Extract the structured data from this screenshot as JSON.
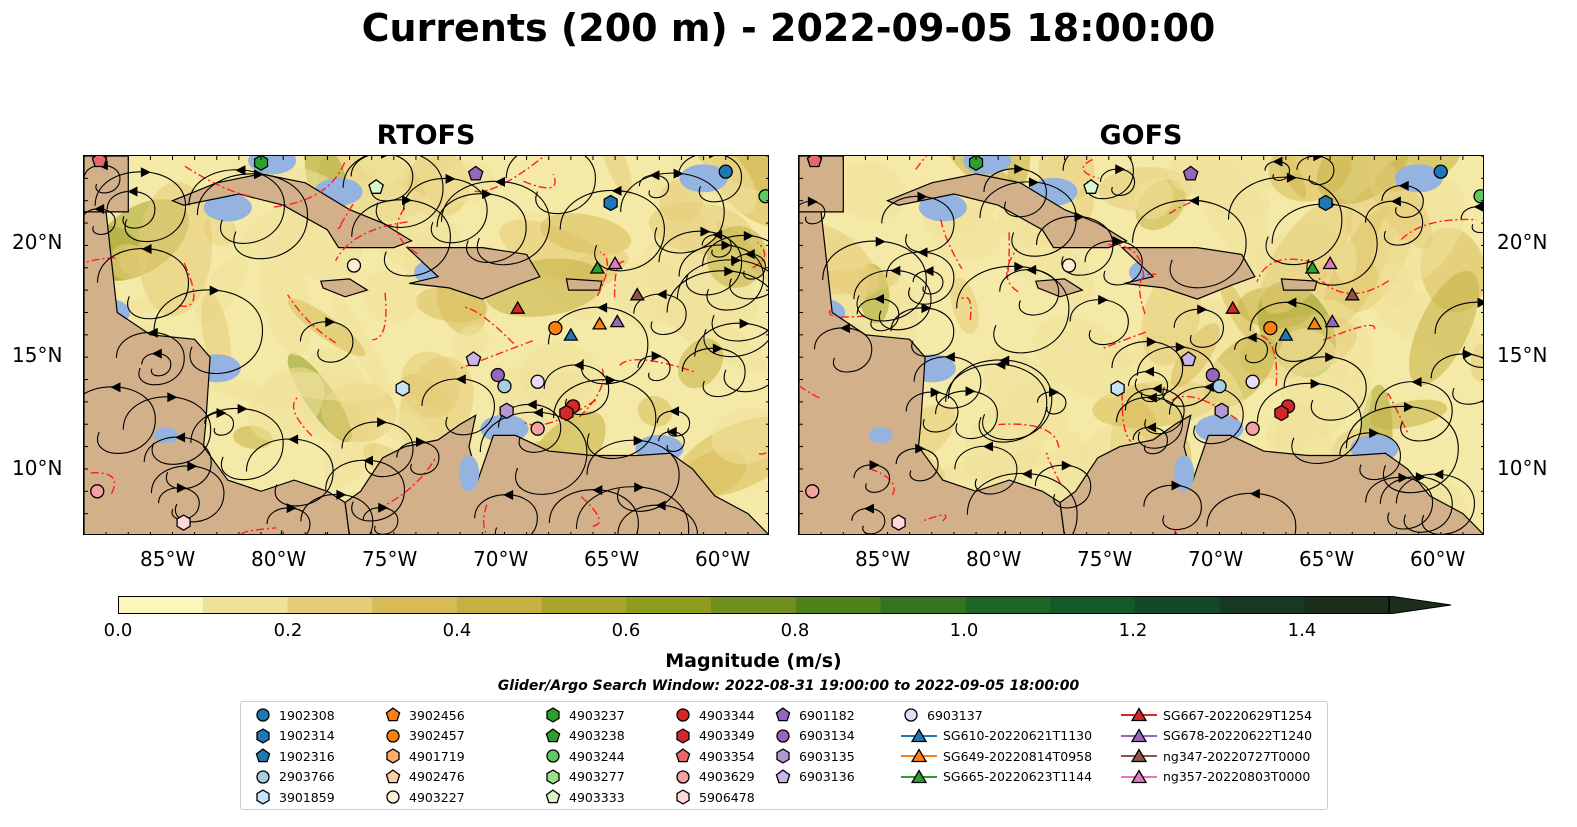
{
  "title": "Currents (200 m) - 2022-09-05 18:00:00",
  "panels": [
    {
      "id": "rtofs",
      "title": "RTOFS"
    },
    {
      "id": "gofs",
      "title": "GOFS"
    }
  ],
  "lat_labels": [
    "20°N",
    "15°N",
    "10°N"
  ],
  "lon_labels": [
    "85°W",
    "80°W",
    "75°W",
    "70°W",
    "65°W",
    "60°W"
  ],
  "colorbar": {
    "label": "Magnitude (m/s)",
    "ticks": [
      "0.0",
      "0.2",
      "0.4",
      "0.6",
      "0.8",
      "1.0",
      "1.2",
      "1.4"
    ],
    "colors": [
      "#fcf6bd",
      "#f0e19a",
      "#e5cc78",
      "#d8bb59",
      "#c5b043",
      "#a7a52e",
      "#8d9b1f",
      "#6f8e1c",
      "#4f821d",
      "#34741f",
      "#1d6626",
      "#125a28",
      "#124a27",
      "#173924",
      "#1b2e1c"
    ]
  },
  "search_window": "Glider/Argo Search Window: 2022-08-31 19:00:00 to 2022-09-05 18:00:00",
  "legend": [
    {
      "label": "1902308",
      "marker": "circle",
      "color": "#1f77b4"
    },
    {
      "label": "1902314",
      "marker": "hexagon",
      "color": "#1f77b4"
    },
    {
      "label": "1902316",
      "marker": "pentagon",
      "color": "#1f77b4"
    },
    {
      "label": "2903766",
      "marker": "circle",
      "color": "#a6cee3"
    },
    {
      "label": "3901859",
      "marker": "hexagon",
      "color": "#c6e2f5"
    },
    {
      "label": "3902456",
      "marker": "pentagon",
      "color": "#ff7f0e"
    },
    {
      "label": "3902457",
      "marker": "circle",
      "color": "#ff7f0e"
    },
    {
      "label": "4901719",
      "marker": "hexagon",
      "color": "#fdae6b"
    },
    {
      "label": "4902476",
      "marker": "pentagon",
      "color": "#fdd0a2"
    },
    {
      "label": "4903227",
      "marker": "circle",
      "color": "#feeed8"
    },
    {
      "label": "4903237",
      "marker": "hexagon",
      "color": "#2ca02c"
    },
    {
      "label": "4903238",
      "marker": "pentagon",
      "color": "#2ca02c"
    },
    {
      "label": "4903244",
      "marker": "circle",
      "color": "#5ec95e"
    },
    {
      "label": "4903277",
      "marker": "hexagon",
      "color": "#98df8a"
    },
    {
      "label": "4903333",
      "marker": "pentagon",
      "color": "#d9f7cf"
    },
    {
      "label": "4903344",
      "marker": "circle",
      "color": "#d62728"
    },
    {
      "label": "4903349",
      "marker": "hexagon",
      "color": "#d62728"
    },
    {
      "label": "4903354",
      "marker": "pentagon",
      "color": "#e9676a"
    },
    {
      "label": "4903629",
      "marker": "circle",
      "color": "#f4a3a3"
    },
    {
      "label": "5906478",
      "marker": "hexagon",
      "color": "#ffd9d9"
    },
    {
      "label": "6901182",
      "marker": "pentagon",
      "color": "#9467bd"
    },
    {
      "label": "6903134",
      "marker": "circle",
      "color": "#9467bd"
    },
    {
      "label": "6903135",
      "marker": "hexagon",
      "color": "#b399d4"
    },
    {
      "label": "6903136",
      "marker": "pentagon",
      "color": "#cbb5e8"
    },
    {
      "label": "6903137",
      "marker": "circle",
      "color": "#e6dbf5"
    },
    {
      "label": "SG610-20220621T1130",
      "marker": "triangle-line",
      "color": "#1f77b4"
    },
    {
      "label": "SG649-20220814T0958",
      "marker": "triangle-line",
      "color": "#ff7f0e"
    },
    {
      "label": "SG665-20220623T1144",
      "marker": "triangle-line",
      "color": "#2ca02c"
    },
    {
      "label": "SG667-20220629T1254",
      "marker": "triangle-line",
      "color": "#d62728"
    },
    {
      "label": "SG678-20220622T1240",
      "marker": "triangle-line",
      "color": "#9467bd"
    },
    {
      "label": "ng347-20220727T0000",
      "marker": "triangle-line",
      "color": "#8c564b"
    },
    {
      "label": "ng357-20220803T0000",
      "marker": "triangle-line",
      "color": "#e377c2"
    }
  ],
  "observations": [
    {
      "id": "1902308",
      "lon": -60.0,
      "lat": 23.3
    },
    {
      "id": "1902314",
      "lon": -65.2,
      "lat": 21.9
    },
    {
      "id": "4903244",
      "lon": -58.2,
      "lat": 22.2
    },
    {
      "id": "4903237",
      "lon": -81.0,
      "lat": 23.7
    },
    {
      "id": "4903333",
      "lon": -75.8,
      "lat": 22.6
    },
    {
      "id": "6901182",
      "lon": -71.3,
      "lat": 23.2
    },
    {
      "id": "4903227",
      "lon": -76.8,
      "lat": 19.1
    },
    {
      "id": "SG665-20220623T1144",
      "lon": -65.8,
      "lat": 19.0
    },
    {
      "id": "ng357-20220803T0000",
      "lon": -65.0,
      "lat": 19.2
    },
    {
      "id": "ng347-20220727T0000",
      "lon": -64.0,
      "lat": 17.8
    },
    {
      "id": "SG667-20220629T1254",
      "lon": -69.4,
      "lat": 17.2
    },
    {
      "id": "3902457",
      "lon": -67.7,
      "lat": 16.3
    },
    {
      "id": "SG610-20220621T1130",
      "lon": -67.0,
      "lat": 16.0
    },
    {
      "id": "SG649-20220814T0958",
      "lon": -65.7,
      "lat": 16.5
    },
    {
      "id": "SG678-20220622T1240",
      "lon": -64.9,
      "lat": 16.6
    },
    {
      "id": "6903136",
      "lon": -71.4,
      "lat": 14.9
    },
    {
      "id": "6903134",
      "lon": -70.3,
      "lat": 14.2
    },
    {
      "id": "2903766",
      "lon": -70.0,
      "lat": 13.7
    },
    {
      "id": "6903137",
      "lon": -68.5,
      "lat": 13.9
    },
    {
      "id": "3901859",
      "lon": -74.6,
      "lat": 13.6
    },
    {
      "id": "6903135",
      "lon": -69.9,
      "lat": 12.6
    },
    {
      "id": "4903344",
      "lon": -66.9,
      "lat": 12.8
    },
    {
      "id": "4903349",
      "lon": -67.2,
      "lat": 12.5
    },
    {
      "id": "4903629",
      "lon": -68.5,
      "lat": 11.8
    },
    {
      "id": "4903354",
      "lon": -88.3,
      "lat": 23.8
    },
    {
      "id": "4903629",
      "lon": -88.4,
      "lat": 9.0
    },
    {
      "id": "5906478",
      "lon": -84.5,
      "lat": 7.6
    }
  ],
  "map_extent": {
    "lon_min": -89.0,
    "lon_max": -58.0,
    "lat_min": 7.0,
    "lat_max": 24.0
  }
}
